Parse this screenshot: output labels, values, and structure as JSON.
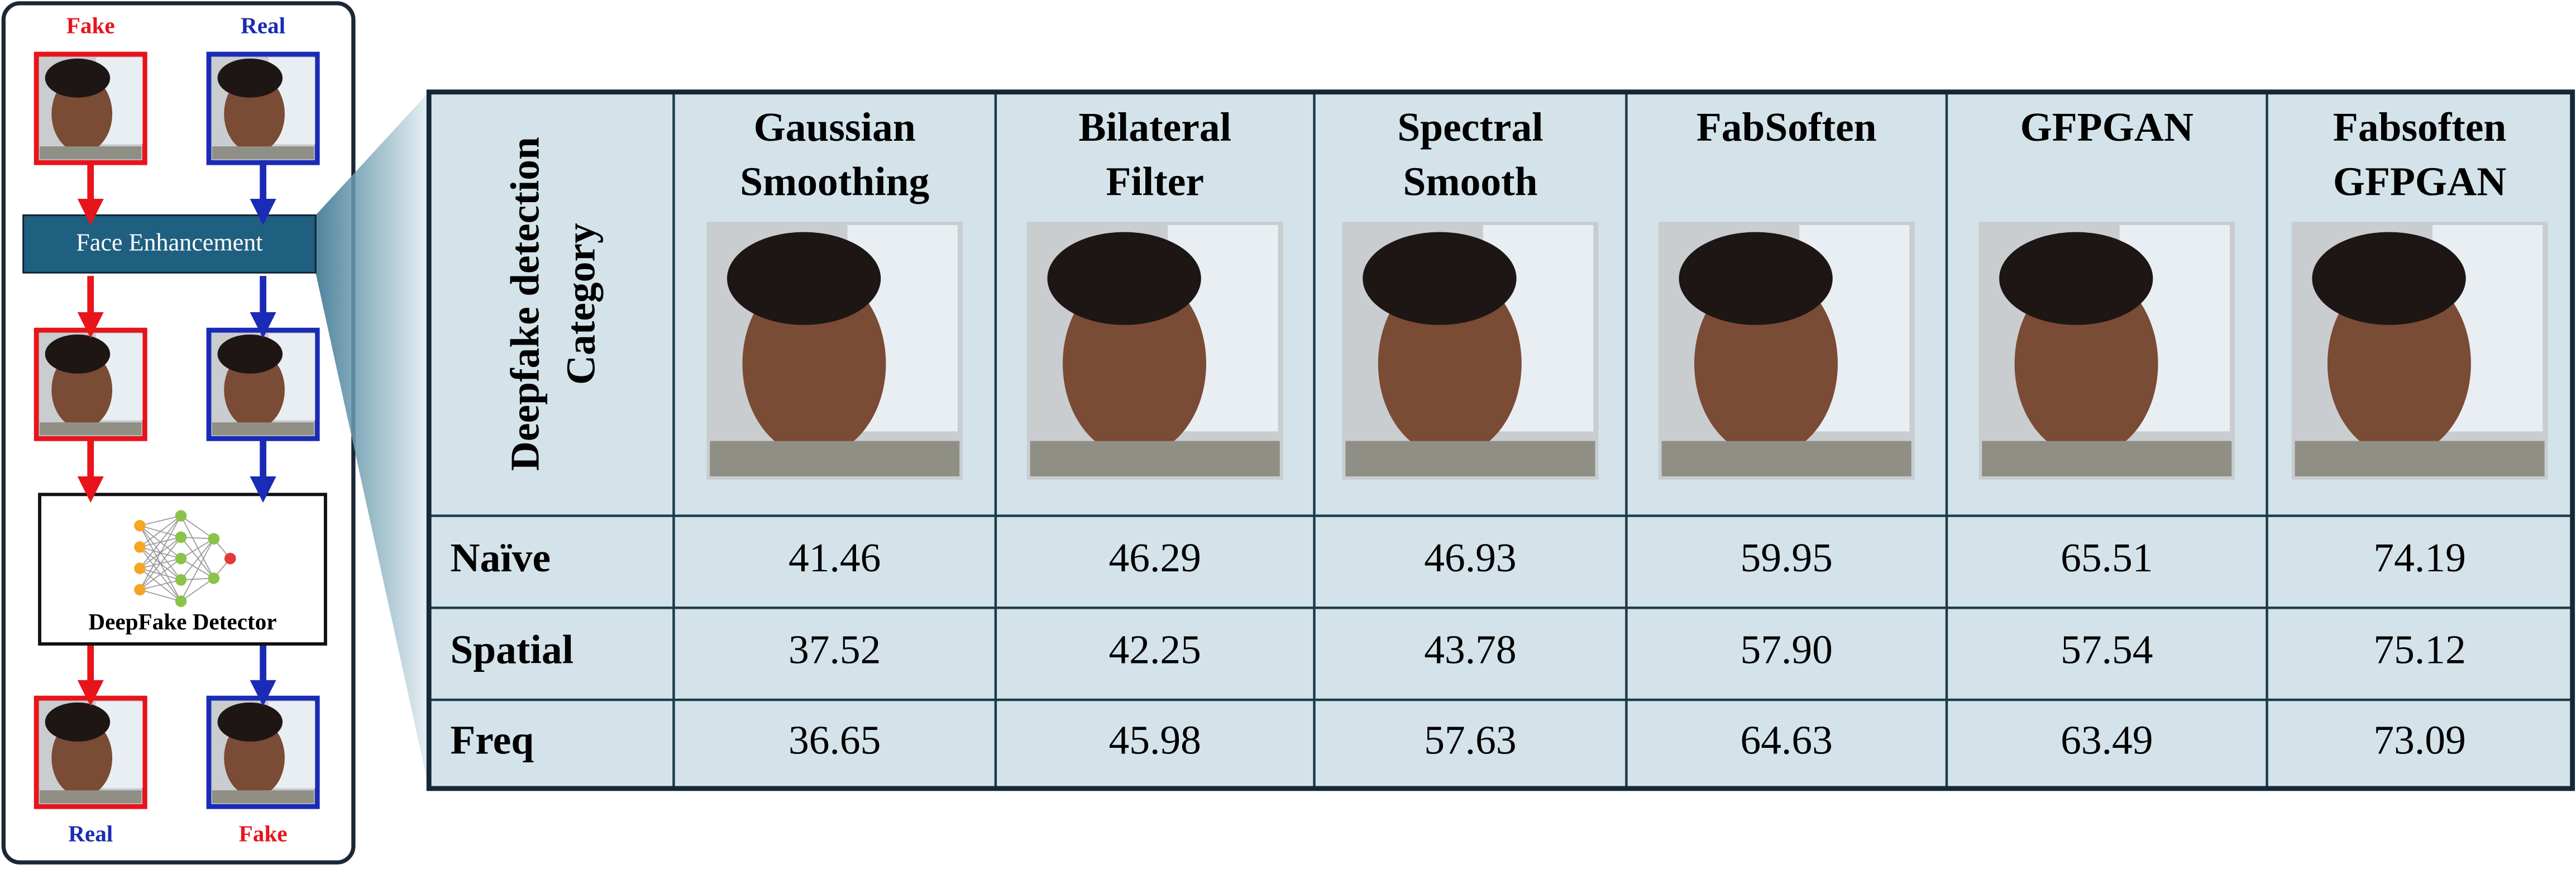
{
  "pipeline": {
    "input_labels": [
      "Fake",
      "Real"
    ],
    "enhancer": "Face Enhancement",
    "detector": "DeepFake Detector",
    "output_labels": [
      "Real",
      "Fake"
    ]
  },
  "table": {
    "category_header": [
      "Deepfake detection",
      "Category"
    ],
    "columns": [
      [
        "Gaussian",
        "Smoothing"
      ],
      [
        "Bilateral",
        "Filter"
      ],
      [
        "Spectral",
        "Smooth"
      ],
      [
        "FabSoften"
      ],
      [
        "GFPGAN"
      ],
      [
        "Fabsoften",
        "GFPGAN"
      ]
    ],
    "rows": [
      {
        "label": "Naïve",
        "values": [
          "41.46",
          "46.29",
          "46.93",
          "59.95",
          "65.51",
          "74.19"
        ]
      },
      {
        "label": "Spatial",
        "values": [
          "37.52",
          "42.25",
          "43.78",
          "57.90",
          "57.54",
          "75.12"
        ]
      },
      {
        "label": "Freq",
        "values": [
          "36.65",
          "45.98",
          "57.63",
          "64.63",
          "63.49",
          "73.09"
        ]
      }
    ]
  }
}
